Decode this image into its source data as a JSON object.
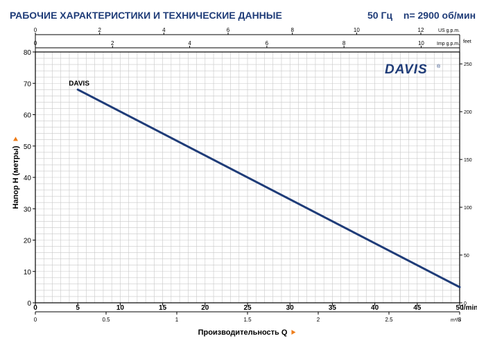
{
  "header": {
    "title": "РАБОЧИЕ ХАРАКТЕРИСТИКИ И ТЕХНИЧЕСКИЕ ДАННЫЕ",
    "freq": "50 Гц",
    "speed": "n= 2900 об/мин"
  },
  "logo": {
    "text": "DAVIS",
    "mark": "®"
  },
  "colors": {
    "curve": "#1f3c78",
    "grid": "#c8c8c8",
    "axis": "#000000",
    "title": "#1f3c78",
    "logo": "#1f3c78",
    "marker": "#ee7d1a"
  },
  "chart_data": {
    "type": "line",
    "title": "",
    "xlabel": "Производительность Q",
    "ylabel": "Напор H (метры)",
    "x_unit": "l/min",
    "x_range": [
      0,
      50
    ],
    "y_range": [
      0,
      80
    ],
    "x_ticks": [
      0,
      5,
      10,
      15,
      20,
      25,
      30,
      35,
      40,
      45,
      50
    ],
    "y_ticks": [
      0,
      10,
      20,
      30,
      40,
      50,
      60,
      70,
      80
    ],
    "series": [
      {
        "name": "DAVIS",
        "x": [
          5,
          50
        ],
        "y": [
          68,
          5
        ]
      }
    ],
    "secondary_axes": {
      "top_us": {
        "label": "US g.p.m.",
        "ticks": [
          "0",
          "2",
          "4",
          "6",
          "8",
          "10",
          "12"
        ],
        "values": [
          0,
          2,
          4,
          6,
          8,
          10,
          12
        ]
      },
      "top_imp": {
        "label": "Imp g.p.m.",
        "ticks": [
          "0",
          "2",
          "4",
          "6",
          "8",
          "10"
        ],
        "values": [
          0,
          2,
          4,
          6,
          8,
          10
        ]
      },
      "bottom_m3h": {
        "label": "m³/h",
        "ticks": [
          "0",
          "0.5",
          "1",
          "1.5",
          "2",
          "2.5",
          "3"
        ],
        "values": [
          0,
          0.5,
          1,
          1.5,
          2,
          2.5,
          3
        ]
      },
      "right_feet": {
        "label": "feet",
        "ticks": [
          "0",
          "50",
          "100",
          "150",
          "200",
          "250"
        ],
        "values": [
          0,
          50,
          100,
          150,
          200,
          250
        ]
      }
    }
  }
}
